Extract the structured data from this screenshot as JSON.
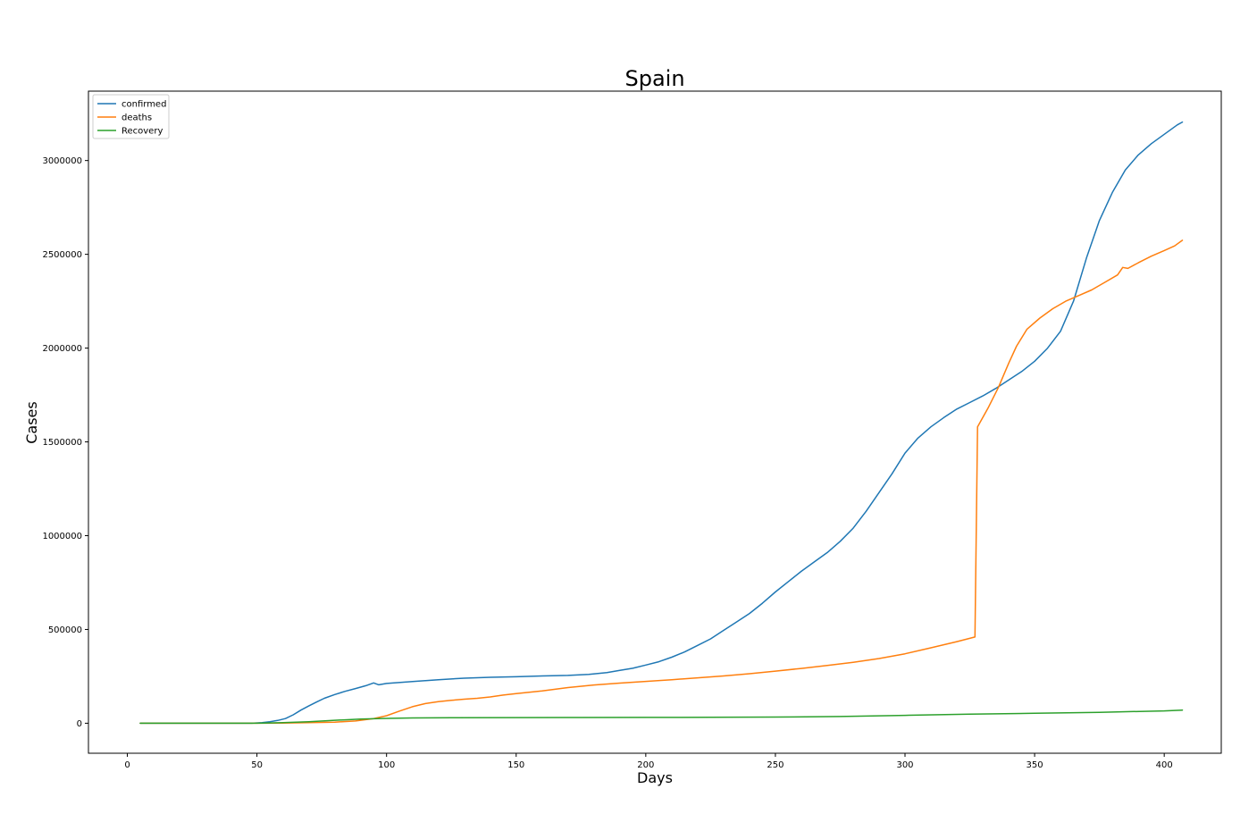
{
  "chart_data": {
    "type": "line",
    "title": "Spain",
    "xlabel": "Days",
    "ylabel": "Cases",
    "xlim": [
      -15,
      422
    ],
    "ylim": [
      -160000,
      3370000
    ],
    "xticks": [
      0,
      50,
      100,
      150,
      200,
      250,
      300,
      350,
      400
    ],
    "yticks": [
      0,
      500000,
      1000000,
      1500000,
      2000000,
      2500000,
      3000000
    ],
    "legend_position": "upper-left",
    "grid": false,
    "series": [
      {
        "name": "confirmed",
        "color": "#1f77b4",
        "points": [
          [
            5,
            0
          ],
          [
            30,
            0
          ],
          [
            48,
            0
          ],
          [
            52,
            3000
          ],
          [
            55,
            8000
          ],
          [
            58,
            15000
          ],
          [
            61,
            25000
          ],
          [
            64,
            45000
          ],
          [
            67,
            70000
          ],
          [
            70,
            92000
          ],
          [
            73,
            113000
          ],
          [
            76,
            133000
          ],
          [
            80,
            153000
          ],
          [
            84,
            170000
          ],
          [
            88,
            185000
          ],
          [
            92,
            200000
          ],
          [
            95,
            215000
          ],
          [
            97,
            205000
          ],
          [
            100,
            212000
          ],
          [
            110,
            222000
          ],
          [
            120,
            232000
          ],
          [
            130,
            240000
          ],
          [
            140,
            245000
          ],
          [
            150,
            248000
          ],
          [
            160,
            252000
          ],
          [
            170,
            255000
          ],
          [
            178,
            260000
          ],
          [
            185,
            270000
          ],
          [
            190,
            282000
          ],
          [
            195,
            293000
          ],
          [
            200,
            310000
          ],
          [
            205,
            328000
          ],
          [
            210,
            352000
          ],
          [
            215,
            380000
          ],
          [
            220,
            415000
          ],
          [
            225,
            450000
          ],
          [
            230,
            495000
          ],
          [
            235,
            540000
          ],
          [
            240,
            585000
          ],
          [
            245,
            640000
          ],
          [
            250,
            700000
          ],
          [
            255,
            755000
          ],
          [
            260,
            810000
          ],
          [
            265,
            860000
          ],
          [
            270,
            910000
          ],
          [
            275,
            970000
          ],
          [
            280,
            1040000
          ],
          [
            285,
            1130000
          ],
          [
            290,
            1230000
          ],
          [
            295,
            1330000
          ],
          [
            300,
            1440000
          ],
          [
            305,
            1520000
          ],
          [
            310,
            1580000
          ],
          [
            315,
            1630000
          ],
          [
            320,
            1675000
          ],
          [
            325,
            1710000
          ],
          [
            330,
            1745000
          ],
          [
            335,
            1785000
          ],
          [
            340,
            1830000
          ],
          [
            345,
            1875000
          ],
          [
            350,
            1930000
          ],
          [
            355,
            2000000
          ],
          [
            360,
            2090000
          ],
          [
            365,
            2250000
          ],
          [
            370,
            2480000
          ],
          [
            375,
            2680000
          ],
          [
            380,
            2830000
          ],
          [
            385,
            2950000
          ],
          [
            390,
            3030000
          ],
          [
            395,
            3090000
          ],
          [
            400,
            3140000
          ],
          [
            405,
            3190000
          ],
          [
            407,
            3205000
          ]
        ]
      },
      {
        "name": "deaths",
        "color": "#ff7f0e",
        "points": [
          [
            5,
            0
          ],
          [
            50,
            0
          ],
          [
            60,
            1000
          ],
          [
            70,
            3000
          ],
          [
            80,
            6000
          ],
          [
            88,
            12000
          ],
          [
            95,
            25000
          ],
          [
            100,
            40000
          ],
          [
            105,
            65000
          ],
          [
            110,
            88000
          ],
          [
            115,
            105000
          ],
          [
            120,
            115000
          ],
          [
            125,
            122000
          ],
          [
            130,
            128000
          ],
          [
            135,
            133000
          ],
          [
            140,
            140000
          ],
          [
            145,
            150000
          ],
          [
            150,
            158000
          ],
          [
            160,
            172000
          ],
          [
            170,
            190000
          ],
          [
            180,
            204000
          ],
          [
            190,
            214000
          ],
          [
            200,
            223000
          ],
          [
            210,
            232000
          ],
          [
            220,
            242000
          ],
          [
            230,
            252000
          ],
          [
            240,
            264000
          ],
          [
            250,
            278000
          ],
          [
            260,
            292000
          ],
          [
            270,
            308000
          ],
          [
            280,
            325000
          ],
          [
            290,
            345000
          ],
          [
            300,
            370000
          ],
          [
            310,
            402000
          ],
          [
            320,
            435000
          ],
          [
            327,
            460000
          ],
          [
            328,
            1580000
          ],
          [
            332,
            1680000
          ],
          [
            336,
            1790000
          ],
          [
            340,
            1920000
          ],
          [
            343,
            2010000
          ],
          [
            347,
            2100000
          ],
          [
            352,
            2160000
          ],
          [
            357,
            2210000
          ],
          [
            362,
            2250000
          ],
          [
            367,
            2280000
          ],
          [
            372,
            2310000
          ],
          [
            377,
            2350000
          ],
          [
            382,
            2390000
          ],
          [
            384,
            2430000
          ],
          [
            386,
            2425000
          ],
          [
            390,
            2455000
          ],
          [
            395,
            2490000
          ],
          [
            400,
            2520000
          ],
          [
            404,
            2545000
          ],
          [
            407,
            2575000
          ]
        ]
      },
      {
        "name": "Recovery",
        "color": "#2ca02c",
        "points": [
          [
            5,
            0
          ],
          [
            50,
            0
          ],
          [
            60,
            3000
          ],
          [
            70,
            8000
          ],
          [
            80,
            16000
          ],
          [
            90,
            22000
          ],
          [
            100,
            26000
          ],
          [
            110,
            28000
          ],
          [
            125,
            29000
          ],
          [
            150,
            30000
          ],
          [
            175,
            30500
          ],
          [
            200,
            31000
          ],
          [
            225,
            31500
          ],
          [
            250,
            33000
          ],
          [
            275,
            36000
          ],
          [
            300,
            42000
          ],
          [
            325,
            48000
          ],
          [
            350,
            53000
          ],
          [
            375,
            58000
          ],
          [
            400,
            66000
          ],
          [
            407,
            70000
          ]
        ]
      }
    ]
  }
}
